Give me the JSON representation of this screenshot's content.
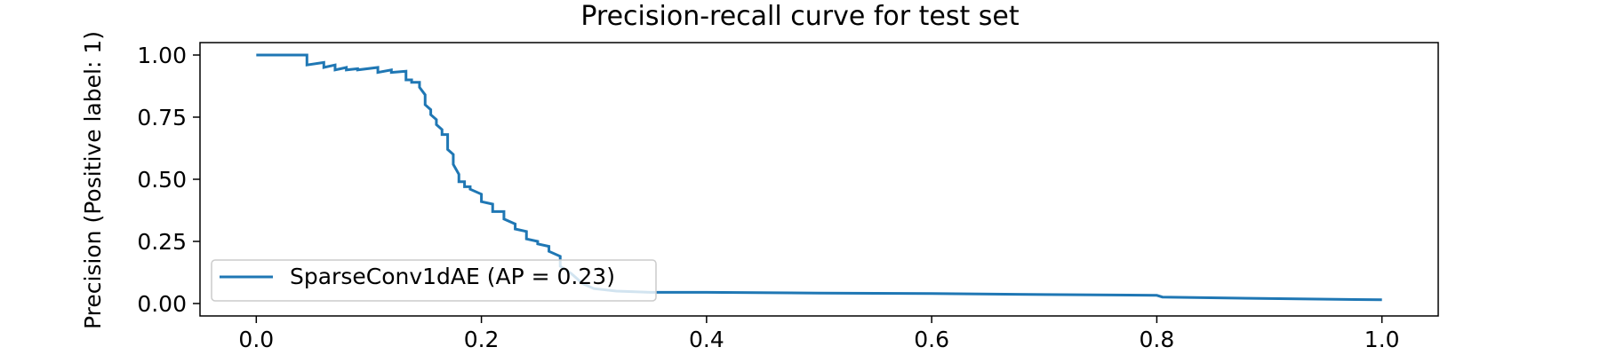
{
  "chart_data": {
    "type": "line",
    "title": "Precision-recall curve for test set",
    "xlabel": "",
    "ylabel": "Precision (Positive label: 1)",
    "xlim": [
      -0.05,
      1.05
    ],
    "ylim": [
      -0.05,
      1.05
    ],
    "xticks": [
      "0.0",
      "0.2",
      "0.4",
      "0.6",
      "0.8",
      "1.0"
    ],
    "yticks": [
      "0.00",
      "0.25",
      "0.50",
      "0.75",
      "1.00"
    ],
    "grid": false,
    "legend": {
      "placement": "lower-left",
      "entries": [
        "SparseConv1dAE (AP = 0.23)"
      ]
    },
    "series": [
      {
        "name": "SparseConv1dAE (AP = 0.23)",
        "color": "#1f77b4",
        "x": [
          0.0,
          0.045,
          0.045,
          0.06,
          0.06,
          0.07,
          0.07,
          0.08,
          0.08,
          0.09,
          0.09,
          0.108,
          0.108,
          0.12,
          0.12,
          0.133,
          0.133,
          0.138,
          0.138,
          0.145,
          0.145,
          0.15,
          0.15,
          0.155,
          0.155,
          0.16,
          0.16,
          0.165,
          0.165,
          0.17,
          0.17,
          0.175,
          0.175,
          0.18,
          0.18,
          0.185,
          0.185,
          0.19,
          0.19,
          0.2,
          0.2,
          0.21,
          0.21,
          0.22,
          0.22,
          0.23,
          0.23,
          0.24,
          0.24,
          0.25,
          0.25,
          0.26,
          0.26,
          0.27,
          0.27,
          0.28,
          0.29,
          0.3,
          0.32,
          0.35,
          0.4,
          0.5,
          0.6,
          0.7,
          0.8,
          0.805,
          0.9,
          1.0
        ],
        "y": [
          1.0,
          1.0,
          0.96,
          0.97,
          0.95,
          0.96,
          0.94,
          0.95,
          0.94,
          0.945,
          0.94,
          0.95,
          0.93,
          0.94,
          0.93,
          0.935,
          0.9,
          0.9,
          0.89,
          0.89,
          0.87,
          0.84,
          0.8,
          0.78,
          0.76,
          0.74,
          0.72,
          0.7,
          0.68,
          0.68,
          0.62,
          0.6,
          0.56,
          0.52,
          0.49,
          0.49,
          0.47,
          0.47,
          0.46,
          0.44,
          0.41,
          0.4,
          0.37,
          0.37,
          0.34,
          0.32,
          0.3,
          0.29,
          0.26,
          0.25,
          0.24,
          0.23,
          0.21,
          0.19,
          0.15,
          0.12,
          0.08,
          0.06,
          0.05,
          0.045,
          0.045,
          0.042,
          0.04,
          0.036,
          0.033,
          0.026,
          0.02,
          0.015
        ]
      }
    ]
  }
}
